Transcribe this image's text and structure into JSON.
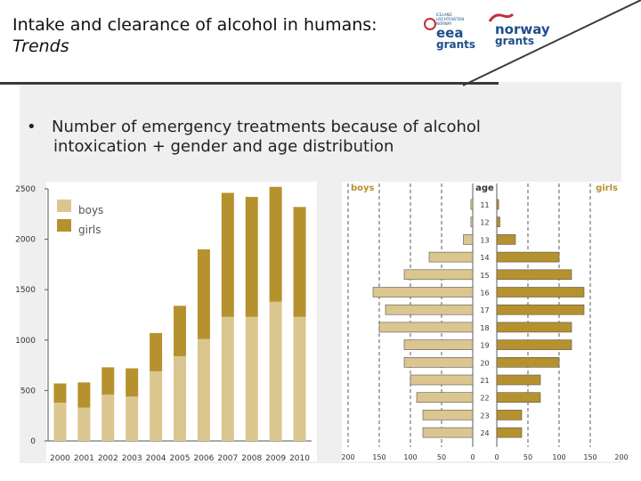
{
  "header": {
    "title_line1": "Intake and clearance of alcohol in humans:",
    "title_line2": "Trends",
    "logos": [
      {
        "name": "eea grants",
        "line1": "eea",
        "line2": "grants",
        "color": "#1f4e8c"
      },
      {
        "name": "norway grants",
        "line1": "norway",
        "line2": "grants",
        "color": "#1f4e8c"
      }
    ],
    "small_text": [
      "ICELAND",
      "LIECHTENSTEIN",
      "NORWAY"
    ]
  },
  "bullet": {
    "marker": "•",
    "line1": "Number of emergency treatments because of alcohol",
    "line2": "intoxication  +  gender and age distribution"
  },
  "colors": {
    "boys": "#dcc690",
    "girls": "#b5922e",
    "panel": "#efefef"
  },
  "chart_data": [
    {
      "type": "bar",
      "stacked": true,
      "title": "",
      "categories": [
        "2000",
        "2001",
        "2002",
        "2003",
        "2004",
        "2005",
        "2006",
        "2007",
        "2008",
        "2009",
        "2010"
      ],
      "series": [
        {
          "name": "boys",
          "values": [
            380,
            330,
            460,
            440,
            690,
            840,
            1010,
            1230,
            1230,
            1380,
            1230
          ]
        },
        {
          "name": "girls",
          "values": [
            190,
            250,
            270,
            280,
            380,
            500,
            890,
            1230,
            1190,
            1140,
            1090
          ]
        }
      ],
      "legend": [
        "boys",
        "girls"
      ],
      "yticks": [
        0,
        500,
        1000,
        1500,
        2000,
        2500
      ],
      "ylim": [
        0,
        2500
      ],
      "xlabel": "",
      "ylabel": ""
    },
    {
      "type": "bar",
      "orientation": "horizontal-butterfly",
      "left_label": "boys",
      "center_label": "age",
      "right_label": "girls",
      "categories": [
        "11",
        "12",
        "13",
        "14",
        "15",
        "16",
        "17",
        "18",
        "19",
        "20",
        "21",
        "22",
        "23",
        "24"
      ],
      "series": [
        {
          "name": "boys",
          "values": [
            3,
            3,
            15,
            70,
            110,
            160,
            140,
            150,
            110,
            110,
            100,
            90,
            80,
            80
          ]
        },
        {
          "name": "girls",
          "values": [
            3,
            5,
            30,
            100,
            120,
            140,
            140,
            120,
            120,
            100,
            70,
            70,
            40,
            40
          ]
        }
      ],
      "xticks_left": [
        "200",
        "150",
        "100",
        "50",
        "0"
      ],
      "xticks_right": [
        "0",
        "50",
        "100",
        "150",
        "200"
      ],
      "xlim": [
        0,
        200
      ]
    }
  ]
}
